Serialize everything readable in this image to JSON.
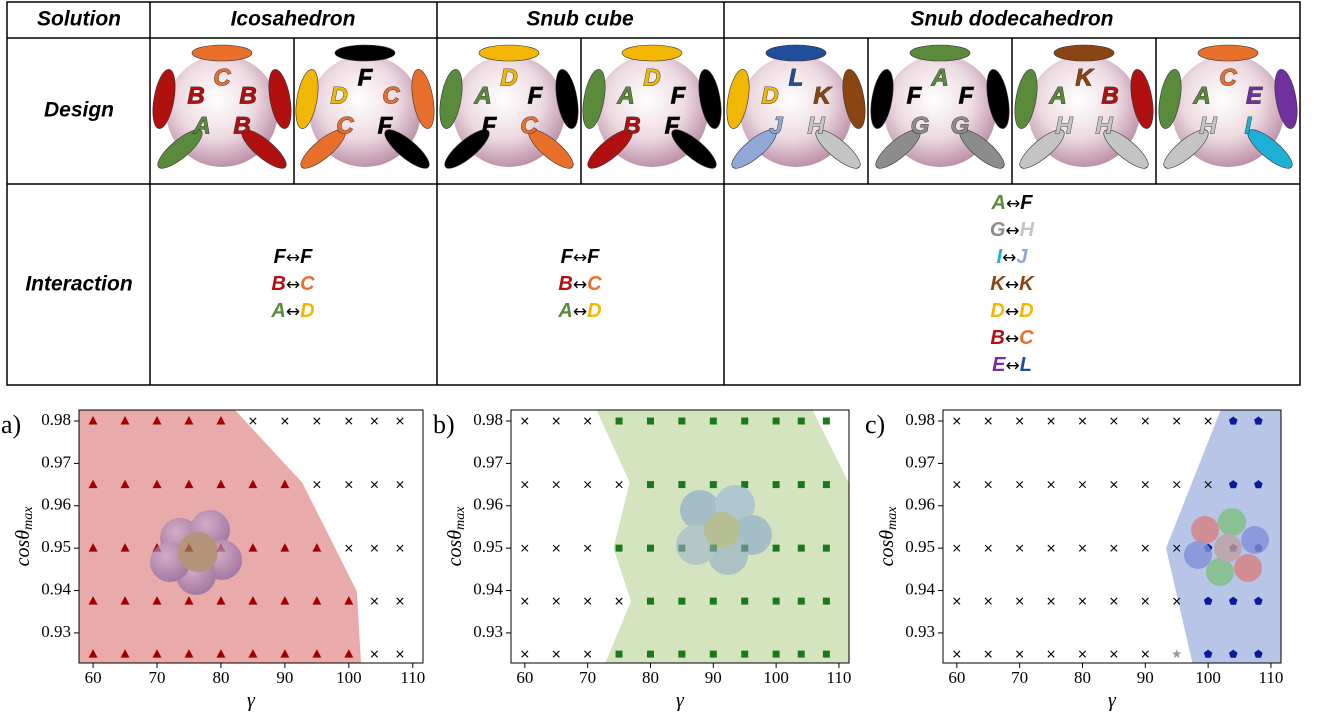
{
  "table": {
    "header": [
      "Solution",
      "Icosahedron",
      "Snub cube",
      "Snub dodecahedron"
    ],
    "rows": [
      "Design",
      "Interaction"
    ],
    "arrow": "↔",
    "letter_colors": {
      "A": "#5a8a3c",
      "B": "#b01010",
      "C": "#e8702a",
      "D": "#f2b705",
      "E": "#7030a0",
      "F": "#000000",
      "G": "#8c8c8c",
      "H": "#c4c4c4",
      "I": "#1fb0d8",
      "J": "#8fa8d8",
      "K": "#8b4513",
      "L": "#1f4e9a"
    },
    "design": [
      [
        "B",
        "C",
        "B",
        "A",
        "B"
      ],
      [
        "D",
        "F",
        "C",
        "C",
        "F"
      ],
      [
        "A",
        "D",
        "F",
        "F",
        "C"
      ],
      [
        "A",
        "D",
        "F",
        "B",
        "F"
      ],
      [
        "D",
        "L",
        "K",
        "J",
        "H"
      ],
      [
        "F",
        "A",
        "F",
        "G",
        "G"
      ],
      [
        "A",
        "K",
        "B",
        "H",
        "H"
      ],
      [
        "A",
        "C",
        "E",
        "H",
        "I"
      ]
    ],
    "interaction": [
      [
        [
          "F",
          "F"
        ],
        [
          "B",
          "C"
        ],
        [
          "A",
          "D"
        ]
      ],
      [
        [
          "F",
          "F"
        ],
        [
          "B",
          "C"
        ],
        [
          "A",
          "D"
        ]
      ],
      [
        [
          "A",
          "F"
        ],
        [
          "G",
          "H"
        ],
        [
          "I",
          "J"
        ],
        [
          "K",
          "K"
        ],
        [
          "D",
          "D"
        ],
        [
          "B",
          "C"
        ],
        [
          "E",
          "L"
        ]
      ]
    ]
  },
  "chart_data": [
    {
      "type": "scatter",
      "panel": "a)",
      "xlabel": "γ",
      "ylabel": "cosθ",
      "ylabel_sub": "max",
      "xlim": [
        57.8,
        111.6
      ],
      "ylim": [
        0.9229,
        0.9826
      ],
      "xticks": [
        60,
        70,
        80,
        90,
        100,
        110
      ],
      "yticks": [
        0.93,
        0.94,
        0.95,
        0.96,
        0.97,
        0.98
      ],
      "region_color": "#e9aaaa",
      "region_x": [
        57.8,
        82.2,
        92.7,
        101.25,
        101.9,
        57.8
      ],
      "region_y": [
        0.9826,
        0.9826,
        0.9655,
        0.9398,
        0.9229,
        0.9229
      ],
      "series": [
        {
          "marker": "triangle",
          "color": "#a00000",
          "x": [
            60,
            65,
            70,
            75,
            80,
            60,
            65,
            70,
            75,
            80,
            85,
            90,
            60,
            65,
            70,
            75,
            80,
            85,
            90,
            95,
            60,
            65,
            70,
            75,
            80,
            85,
            90,
            95,
            100,
            60,
            65,
            70,
            75,
            80,
            85,
            90,
            95,
            100
          ],
          "y": [
            0.98,
            0.98,
            0.98,
            0.98,
            0.98,
            0.965,
            0.965,
            0.965,
            0.965,
            0.965,
            0.965,
            0.965,
            0.95,
            0.95,
            0.95,
            0.95,
            0.95,
            0.95,
            0.95,
            0.95,
            0.9375,
            0.9375,
            0.9375,
            0.9375,
            0.9375,
            0.9375,
            0.9375,
            0.9375,
            0.9375,
            0.925,
            0.925,
            0.925,
            0.925,
            0.925,
            0.925,
            0.925,
            0.925,
            0.925
          ]
        },
        {
          "marker": "cross",
          "color": "#000000",
          "x": [
            85,
            90,
            95,
            100,
            104,
            108,
            95,
            100,
            104,
            108,
            100,
            104,
            108,
            104,
            108,
            104,
            108
          ],
          "y": [
            0.98,
            0.98,
            0.98,
            0.98,
            0.98,
            0.98,
            0.965,
            0.965,
            0.965,
            0.965,
            0.95,
            0.95,
            0.95,
            0.9375,
            0.9375,
            0.925,
            0.925
          ]
        }
      ]
    },
    {
      "type": "scatter",
      "panel": "b)",
      "xlabel": "γ",
      "ylabel": "cosθ",
      "ylabel_sub": "max",
      "xlim": [
        57.8,
        111.6
      ],
      "ylim": [
        0.9229,
        0.9826
      ],
      "xticks": [
        60,
        70,
        80,
        90,
        100,
        110
      ],
      "yticks": [
        0.93,
        0.94,
        0.95,
        0.96,
        0.97,
        0.98
      ],
      "region_color": "#d3e4be",
      "region_x": [
        71.4,
        105.8,
        111.6,
        111.6,
        72.8,
        76.9,
        74.1,
        76.7
      ],
      "region_y": [
        0.9826,
        0.9826,
        0.9653,
        0.9229,
        0.9229,
        0.9375,
        0.95,
        0.9655
      ],
      "series": [
        {
          "marker": "square",
          "color": "#1a7a1a",
          "x": [
            75,
            80,
            85,
            90,
            95,
            100,
            104,
            108,
            80,
            85,
            90,
            95,
            100,
            104,
            108,
            75,
            80,
            85,
            90,
            95,
            100,
            104,
            108,
            80,
            85,
            90,
            95,
            100,
            104,
            108,
            75,
            80,
            85,
            90,
            95,
            100,
            104,
            108
          ],
          "y": [
            0.98,
            0.98,
            0.98,
            0.98,
            0.98,
            0.98,
            0.98,
            0.98,
            0.965,
            0.965,
            0.965,
            0.965,
            0.965,
            0.965,
            0.965,
            0.95,
            0.95,
            0.95,
            0.95,
            0.95,
            0.95,
            0.95,
            0.95,
            0.9375,
            0.9375,
            0.9375,
            0.9375,
            0.9375,
            0.9375,
            0.9375,
            0.925,
            0.925,
            0.925,
            0.925,
            0.925,
            0.925,
            0.925,
            0.925
          ]
        },
        {
          "marker": "cross",
          "color": "#000000",
          "x": [
            60,
            65,
            70,
            60,
            65,
            70,
            75,
            60,
            65,
            70,
            60,
            65,
            70,
            75,
            60,
            65,
            70
          ],
          "y": [
            0.98,
            0.98,
            0.98,
            0.965,
            0.965,
            0.965,
            0.965,
            0.95,
            0.95,
            0.95,
            0.9375,
            0.9375,
            0.9375,
            0.9375,
            0.925,
            0.925,
            0.925
          ]
        }
      ]
    },
    {
      "type": "scatter",
      "panel": "c)",
      "xlabel": "γ",
      "ylabel": "cosθ",
      "ylabel_sub": "max",
      "xlim": [
        57.8,
        111.6
      ],
      "ylim": [
        0.9229,
        0.9826
      ],
      "xticks": [
        60,
        70,
        80,
        90,
        100,
        110
      ],
      "yticks": [
        0.93,
        0.94,
        0.95,
        0.96,
        0.97,
        0.98
      ],
      "region_color": "#b7c6e6",
      "region_x": [
        102.0,
        111.6,
        111.6,
        97.5,
        93.3
      ],
      "region_y": [
        0.9826,
        0.9826,
        0.9229,
        0.9229,
        0.95
      ],
      "series": [
        {
          "marker": "pentagon",
          "color": "#0a1a9a",
          "x": [
            104,
            108,
            104,
            108,
            100,
            104,
            108,
            100,
            104,
            108,
            100,
            104,
            108
          ],
          "y": [
            0.98,
            0.98,
            0.965,
            0.965,
            0.95,
            0.95,
            0.95,
            0.9375,
            0.9375,
            0.9375,
            0.925,
            0.925,
            0.925
          ]
        },
        {
          "marker": "star",
          "color": "#999999",
          "x": [
            95
          ],
          "y": [
            0.925
          ]
        },
        {
          "marker": "cross",
          "color": "#000000",
          "x": [
            60,
            65,
            70,
            75,
            80,
            85,
            90,
            95,
            100,
            60,
            65,
            70,
            75,
            80,
            85,
            90,
            95,
            100,
            60,
            65,
            70,
            75,
            80,
            85,
            90,
            95,
            60,
            65,
            70,
            75,
            80,
            85,
            90,
            95,
            60,
            65,
            70,
            75,
            80,
            85,
            90
          ],
          "y": [
            0.98,
            0.98,
            0.98,
            0.98,
            0.98,
            0.98,
            0.98,
            0.98,
            0.98,
            0.965,
            0.965,
            0.965,
            0.965,
            0.965,
            0.965,
            0.965,
            0.965,
            0.965,
            0.95,
            0.95,
            0.95,
            0.95,
            0.95,
            0.95,
            0.95,
            0.95,
            0.9375,
            0.9375,
            0.9375,
            0.9375,
            0.9375,
            0.9375,
            0.9375,
            0.9375,
            0.925,
            0.925,
            0.925,
            0.925,
            0.925,
            0.925,
            0.925
          ]
        }
      ]
    }
  ]
}
